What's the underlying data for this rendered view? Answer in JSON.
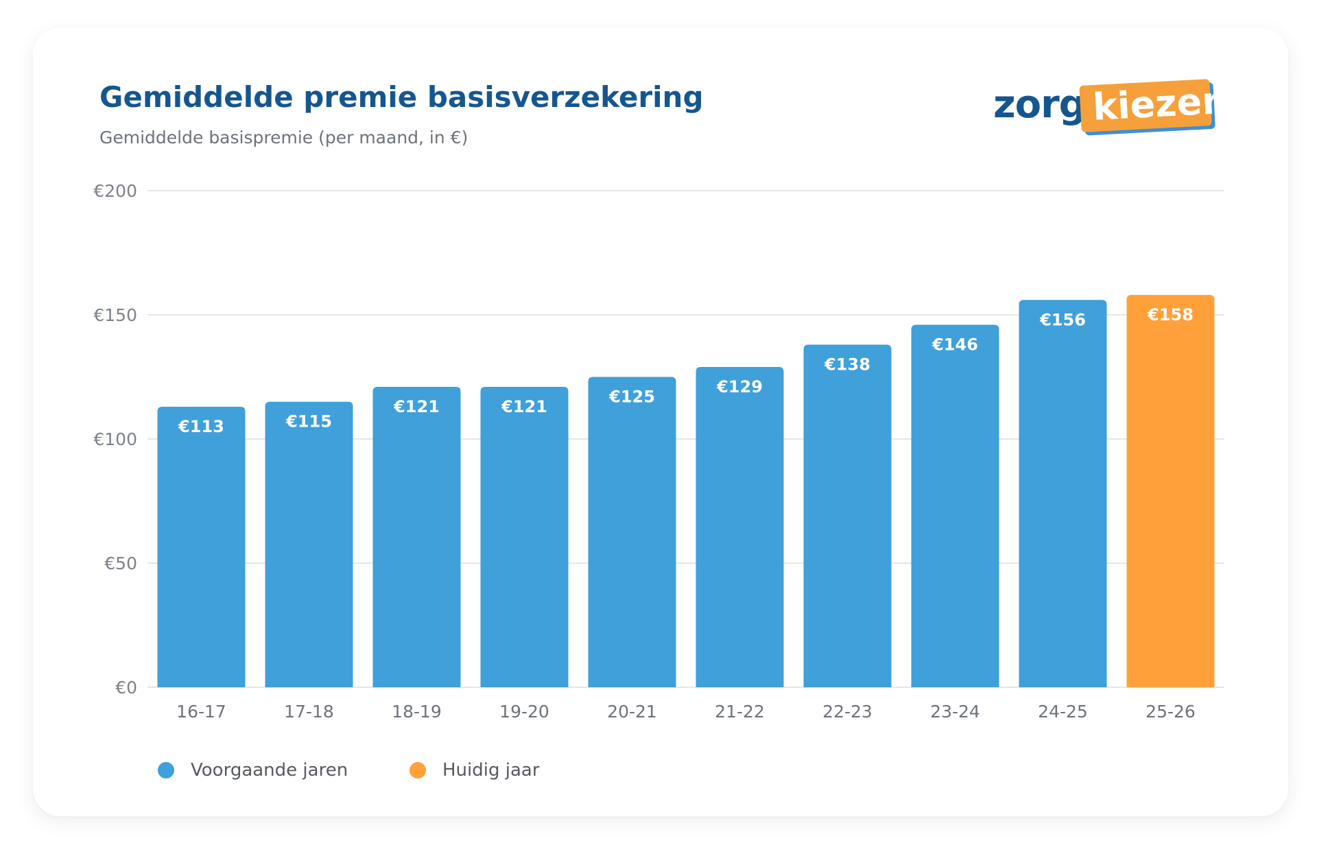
{
  "header": {
    "title": "Gemiddelde premie basisverzekering",
    "subtitle": "Gemiddelde basispremie (per maand, in €)"
  },
  "logo": {
    "part1": "zorg",
    "part2": "kiezer"
  },
  "legend": {
    "previous": {
      "label": "Voorgaande jaren",
      "color": "#3fa0da"
    },
    "current": {
      "label": "Huidig jaar",
      "color": "#ffa03a"
    }
  },
  "chart_data": {
    "type": "bar",
    "title": "Gemiddelde premie basisverzekering",
    "subtitle": "Gemiddelde basispremie (per maand, in €)",
    "categories": [
      "16-17",
      "17-18",
      "18-19",
      "19-20",
      "20-21",
      "21-22",
      "22-23",
      "23-24",
      "24-25",
      "25-26"
    ],
    "values": [
      113,
      115,
      121,
      121,
      125,
      129,
      138,
      146,
      156,
      158
    ],
    "value_labels": [
      "€113",
      "€115",
      "€121",
      "€121",
      "€125",
      "€129",
      "€138",
      "€146",
      "€156",
      "€158"
    ],
    "highlight_index": 9,
    "ylim": [
      0,
      200
    ],
    "yticks": [
      0,
      50,
      100,
      150,
      200
    ],
    "ytick_labels": [
      "€0",
      "€50",
      "€100",
      "€150",
      "€200"
    ],
    "grid": true,
    "legend_position": "bottom-left",
    "colors": {
      "previous": "#3fa0da",
      "current": "#ffa03a",
      "grid": "#e3e6ea"
    }
  }
}
